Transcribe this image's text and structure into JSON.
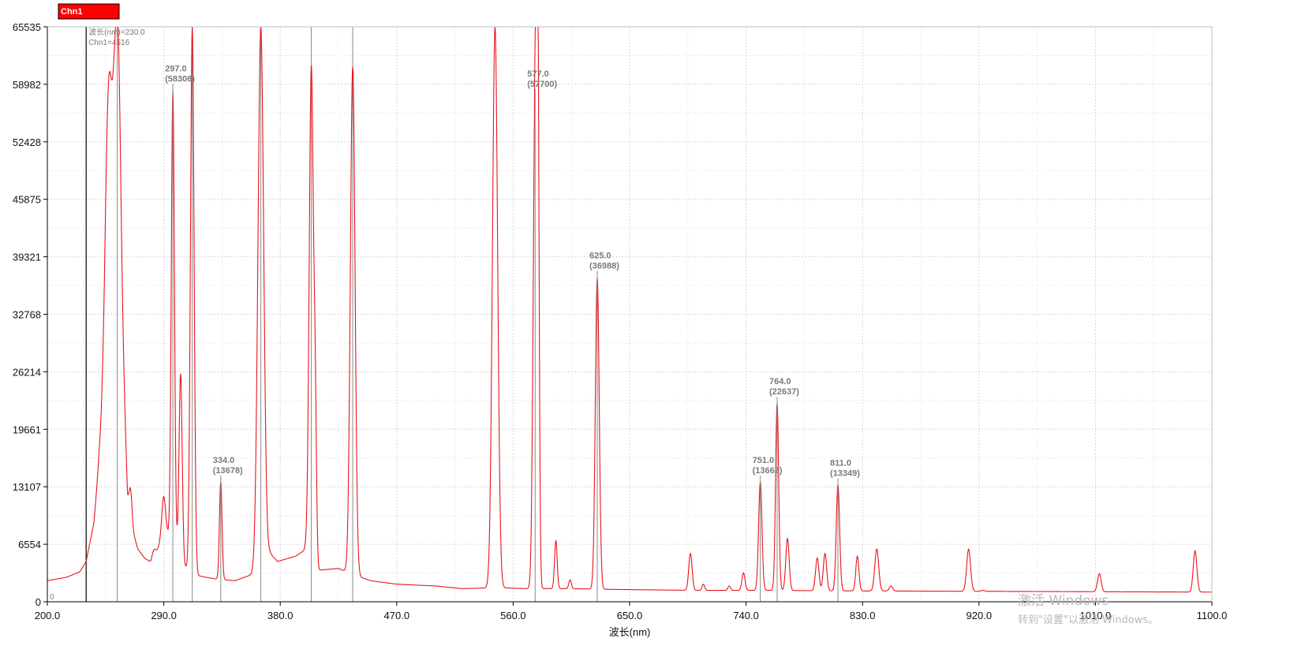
{
  "chart_data": {
    "type": "line",
    "xlabel": "波长(nm)",
    "xlim": [
      200,
      1100
    ],
    "ylim": [
      0,
      65535
    ],
    "x_ticks": [
      "200.0",
      "290.0",
      "380.0",
      "470.0",
      "560.0",
      "650.0",
      "740.0",
      "830.0",
      "920.0",
      "1010.0",
      "1100.0"
    ],
    "y_ticks": [
      "0",
      "6554",
      "13107",
      "19661",
      "26214",
      "32768",
      "39321",
      "45875",
      "52428",
      "58982",
      "65535"
    ],
    "grid": true,
    "legend": {
      "position": "top-left",
      "entries": [
        "Chn1"
      ]
    },
    "series": [
      {
        "name": "Chn1",
        "color": "#e8141c",
        "baseline": [
          [
            200,
            2400
          ],
          [
            215,
            2800
          ],
          [
            225,
            3400
          ],
          [
            230,
            4600
          ],
          [
            236,
            9000
          ],
          [
            240,
            16000
          ],
          [
            244,
            19000
          ],
          [
            248,
            30000
          ],
          [
            252,
            50000
          ],
          [
            256,
            40000
          ],
          [
            262,
            12000
          ],
          [
            266,
            8000
          ],
          [
            270,
            6000
          ],
          [
            275,
            5000
          ],
          [
            280,
            4500
          ],
          [
            287,
            6500
          ],
          [
            293,
            7500
          ],
          [
            300,
            6000
          ],
          [
            306,
            4000
          ],
          [
            315,
            3000
          ],
          [
            330,
            2600
          ],
          [
            345,
            2400
          ],
          [
            360,
            3200
          ],
          [
            372,
            5500
          ],
          [
            378,
            4600
          ],
          [
            392,
            5200
          ],
          [
            400,
            6000
          ],
          [
            410,
            3600
          ],
          [
            425,
            3800
          ],
          [
            438,
            3000
          ],
          [
            450,
            2400
          ],
          [
            470,
            2000
          ],
          [
            500,
            1800
          ],
          [
            520,
            1500
          ],
          [
            548,
            1600
          ],
          [
            570,
            1500
          ],
          [
            600,
            1500
          ],
          [
            640,
            1400
          ],
          [
            700,
            1300
          ],
          [
            760,
            1300
          ],
          [
            800,
            1250
          ],
          [
            900,
            1200
          ],
          [
            1000,
            1150
          ],
          [
            1100,
            1100
          ]
        ],
        "peaks": [
          [
            248,
            60000,
            3
          ],
          [
            254,
            65535,
            2
          ],
          [
            264,
            13000,
            1.2
          ],
          [
            276,
            2500,
            1
          ],
          [
            283,
            6000,
            1.5
          ],
          [
            290,
            12000,
            1.5
          ],
          [
            297,
            58306,
            1.2
          ],
          [
            303,
            26000,
            1.2
          ],
          [
            312,
            65535,
            1.4
          ],
          [
            334,
            13678,
            1
          ],
          [
            365,
            65535,
            2.2
          ],
          [
            404,
            61000,
            1.6
          ],
          [
            407,
            20000,
            1
          ],
          [
            436,
            61000,
            1.8
          ],
          [
            492,
            1800,
            1
          ],
          [
            546,
            65535,
            2
          ],
          [
            577,
            57700,
            1.5
          ],
          [
            579,
            55000,
            1
          ],
          [
            593,
            7000,
            1
          ],
          [
            604,
            2500,
            1
          ],
          [
            625,
            36988,
            1.5
          ],
          [
            684,
            1000,
            1
          ],
          [
            697,
            5500,
            1.3
          ],
          [
            707,
            2000,
            1
          ],
          [
            727,
            1800,
            1
          ],
          [
            738,
            3300,
            1.2
          ],
          [
            751,
            13662,
            1.3
          ],
          [
            764,
            22637,
            1.2
          ],
          [
            772,
            7200,
            1.3
          ],
          [
            795,
            5000,
            1.3
          ],
          [
            801,
            5500,
            1.3
          ],
          [
            811,
            13349,
            1.3
          ],
          [
            826,
            5200,
            1.2
          ],
          [
            841,
            6000,
            1.5
          ],
          [
            852,
            1800,
            1.3
          ],
          [
            912,
            6000,
            1.5
          ],
          [
            923,
            1300,
            1.3
          ],
          [
            965,
            600,
            1.5
          ],
          [
            1013,
            3200,
            1.4
          ],
          [
            1087,
            5800,
            1.4
          ]
        ]
      }
    ],
    "annotations": [
      {
        "x": 297,
        "y": 58306,
        "label": "297.0",
        "value": "(58306)"
      },
      {
        "x": 334,
        "y": 13678,
        "label": "334.0",
        "value": "(13678)"
      },
      {
        "x": 577,
        "y": 57700,
        "label": "577.0",
        "value": "(57700)"
      },
      {
        "x": 625,
        "y": 36988,
        "label": "625.0",
        "value": "(36988)"
      },
      {
        "x": 751,
        "y": 13662,
        "label": "751.0",
        "value": "(13662)"
      },
      {
        "x": 764,
        "y": 22637,
        "label": "764.0",
        "value": "(22637)"
      },
      {
        "x": 811,
        "y": 13349,
        "label": "811.0",
        "value": "(13349)"
      }
    ],
    "marker_lines": [
      254,
      312,
      365,
      404,
      436
    ],
    "cursor": {
      "x": 230.0,
      "line1": "波长(nm)=230.0",
      "line2": "Chn1=4516"
    }
  },
  "watermark": {
    "line1": "激活 Windows",
    "line2": "转到\"设置\"以激活 Windows。"
  }
}
